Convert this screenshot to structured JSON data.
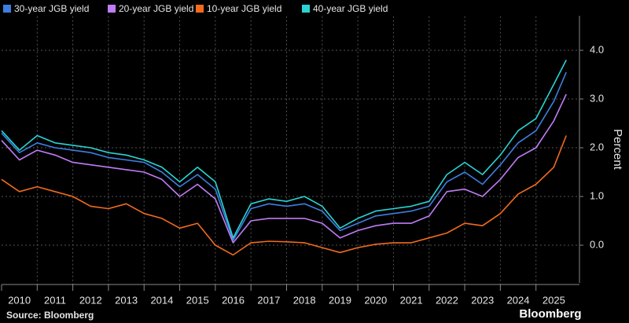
{
  "chart_data": {
    "type": "line",
    "legend": "top-left",
    "y_axis_label": "Percent",
    "source": "Source: Bloomberg",
    "brand": "Bloomberg",
    "grid": true,
    "x": [
      2010,
      2010.5,
      2011,
      2011.5,
      2012,
      2012.5,
      2013,
      2013.5,
      2014,
      2014.5,
      2015,
      2015.5,
      2016,
      2016.5,
      2017,
      2017.5,
      2018,
      2018.5,
      2019,
      2019.5,
      2020,
      2020.5,
      2021,
      2021.5,
      2022,
      2022.5,
      2023,
      2023.5,
      2024,
      2024.5,
      2025,
      2025.5,
      2025.85
    ],
    "xlim": [
      2010,
      2026
    ],
    "xticks": [
      2010,
      2011,
      2012,
      2013,
      2014,
      2015,
      2016,
      2017,
      2018,
      2019,
      2020,
      2021,
      2022,
      2023,
      2024,
      2025
    ],
    "ylim": [
      -0.7,
      4.7
    ],
    "yticks": [
      {
        "value": 0,
        "label": "0.0"
      },
      {
        "value": 1,
        "label": "1.0"
      },
      {
        "value": 2,
        "label": "2.0"
      },
      {
        "value": 3,
        "label": "3.0"
      },
      {
        "value": 4,
        "label": "4.0"
      }
    ],
    "series": [
      {
        "name": "30-year JGB yield",
        "color": "#3d7fe0",
        "values": [
          2.3,
          1.9,
          2.1,
          2.0,
          1.95,
          1.9,
          1.8,
          1.75,
          1.7,
          1.5,
          1.2,
          1.45,
          1.15,
          0.1,
          0.75,
          0.85,
          0.8,
          0.85,
          0.7,
          0.3,
          0.45,
          0.6,
          0.65,
          0.7,
          0.8,
          1.3,
          1.5,
          1.25,
          1.65,
          2.1,
          2.35,
          2.95,
          3.55
        ]
      },
      {
        "name": "20-year JGB yield",
        "color": "#c07cf5",
        "values": [
          2.15,
          1.75,
          1.95,
          1.85,
          1.7,
          1.65,
          1.6,
          1.55,
          1.5,
          1.35,
          1.0,
          1.25,
          0.95,
          0.05,
          0.5,
          0.55,
          0.55,
          0.55,
          0.45,
          0.15,
          0.3,
          0.4,
          0.45,
          0.45,
          0.6,
          1.1,
          1.15,
          1.0,
          1.35,
          1.8,
          2.0,
          2.55,
          3.1
        ]
      },
      {
        "name": "10-year JGB yield",
        "color": "#f26b1d",
        "values": [
          1.35,
          1.1,
          1.2,
          1.1,
          1.0,
          0.8,
          0.75,
          0.85,
          0.65,
          0.55,
          0.35,
          0.45,
          0.0,
          -0.2,
          0.05,
          0.08,
          0.07,
          0.05,
          -0.05,
          -0.15,
          -0.05,
          0.02,
          0.05,
          0.05,
          0.15,
          0.25,
          0.45,
          0.4,
          0.65,
          1.05,
          1.25,
          1.6,
          2.25
        ]
      },
      {
        "name": "40-year JGB yield",
        "color": "#2ad4d4",
        "values": [
          2.35,
          1.95,
          2.25,
          2.1,
          2.05,
          2.0,
          1.9,
          1.85,
          1.75,
          1.6,
          1.3,
          1.6,
          1.3,
          0.15,
          0.85,
          0.95,
          0.9,
          1.0,
          0.8,
          0.35,
          0.55,
          0.7,
          0.75,
          0.8,
          0.9,
          1.45,
          1.7,
          1.45,
          1.85,
          2.35,
          2.6,
          3.3,
          3.8
        ]
      }
    ]
  }
}
